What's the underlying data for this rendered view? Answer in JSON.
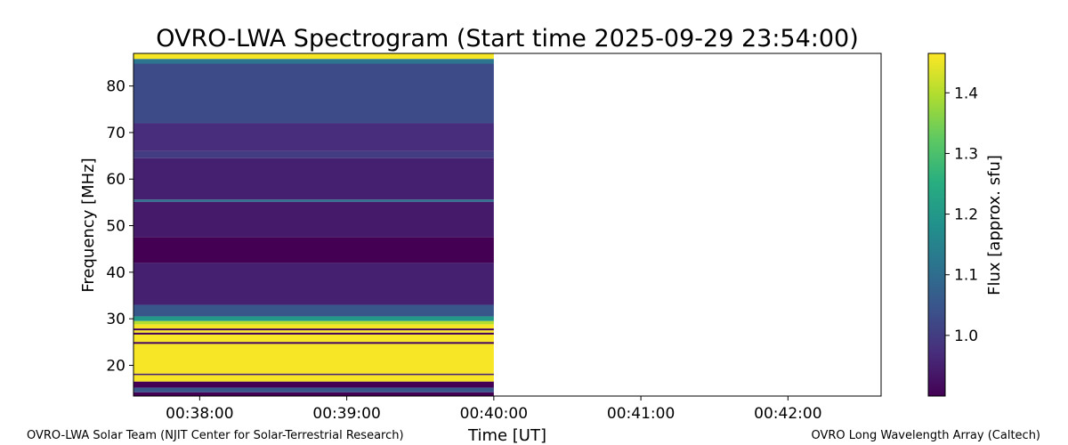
{
  "chart_data": {
    "type": "heatmap",
    "title": "OVRO-LWA Spectrogram (Start time 2025-09-29 23:54:00)",
    "xlabel": "Time [UT]",
    "ylabel": "Frequency [MHz]",
    "xticks": [
      "00:38:00",
      "00:39:00",
      "00:40:00",
      "00:41:00",
      "00:42:00"
    ],
    "xlim": [
      "00:37:33",
      "00:42:38"
    ],
    "yticks": [
      20,
      30,
      40,
      50,
      60,
      70,
      80
    ],
    "ylim": [
      13.4,
      87.0
    ],
    "data_time_range": [
      "00:37:33",
      "00:40:00"
    ],
    "colormap": "viridis",
    "colorbar": {
      "label": "Flux [approx. sfu]",
      "ticks": [
        1.0,
        1.1,
        1.2,
        1.3,
        1.4
      ],
      "range": [
        0.9,
        1.465
      ]
    },
    "bands": [
      {
        "f0": 85.8,
        "f1": 87.0,
        "flux": 1.46
      },
      {
        "f0": 84.8,
        "f1": 85.8,
        "flux": 1.12
      },
      {
        "f0": 72.0,
        "f1": 84.8,
        "flux": 1.03
      },
      {
        "f0": 66.0,
        "f1": 72.0,
        "flux": 0.97
      },
      {
        "f0": 64.5,
        "f1": 66.0,
        "flux": 1.0
      },
      {
        "f0": 55.6,
        "f1": 64.5,
        "flux": 0.95
      },
      {
        "f0": 55.1,
        "f1": 55.6,
        "flux": 1.1
      },
      {
        "f0": 47.5,
        "f1": 55.1,
        "flux": 0.94
      },
      {
        "f0": 42.0,
        "f1": 47.5,
        "flux": 0.9
      },
      {
        "f0": 33.0,
        "f1": 42.0,
        "flux": 0.95
      },
      {
        "f0": 30.5,
        "f1": 33.0,
        "flux": 1.05
      },
      {
        "f0": 29.5,
        "f1": 30.5,
        "flux": 1.2
      },
      {
        "f0": 28.8,
        "f1": 29.5,
        "flux": 1.4
      },
      {
        "f0": 27.9,
        "f1": 28.8,
        "flux": 1.46
      },
      {
        "f0": 27.5,
        "f1": 27.9,
        "flux": 0.9
      },
      {
        "f0": 27.0,
        "f1": 27.5,
        "flux": 1.46
      },
      {
        "f0": 26.6,
        "f1": 27.0,
        "flux": 0.9
      },
      {
        "f0": 25.0,
        "f1": 26.6,
        "flux": 1.46
      },
      {
        "f0": 24.6,
        "f1": 25.0,
        "flux": 0.9
      },
      {
        "f0": 18.2,
        "f1": 24.6,
        "flux": 1.46
      },
      {
        "f0": 17.9,
        "f1": 18.2,
        "flux": 0.95
      },
      {
        "f0": 16.5,
        "f1": 17.9,
        "flux": 1.46
      },
      {
        "f0": 15.2,
        "f1": 16.5,
        "flux": 0.9
      },
      {
        "f0": 14.2,
        "f1": 15.2,
        "flux": 1.05
      },
      {
        "f0": 13.4,
        "f1": 14.2,
        "flux": 0.9
      }
    ]
  },
  "footer": {
    "left": "OVRO-LWA Solar Team (NJIT Center for Solar-Terrestrial Research)",
    "right": "OVRO Long Wavelength Array (Caltech)"
  }
}
